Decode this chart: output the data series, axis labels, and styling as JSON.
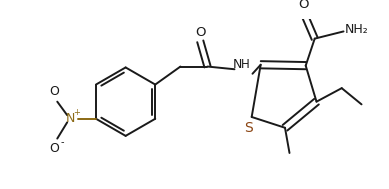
{
  "bg_color": "#ffffff",
  "line_color": "#1a1a1a",
  "s_color": "#8B4513",
  "n_color": "#8B6914",
  "bond_lw": 1.4,
  "figsize": [
    3.89,
    1.89
  ],
  "dpi": 100,
  "xlim": [
    0,
    389
  ],
  "ylim": [
    0,
    189
  ]
}
